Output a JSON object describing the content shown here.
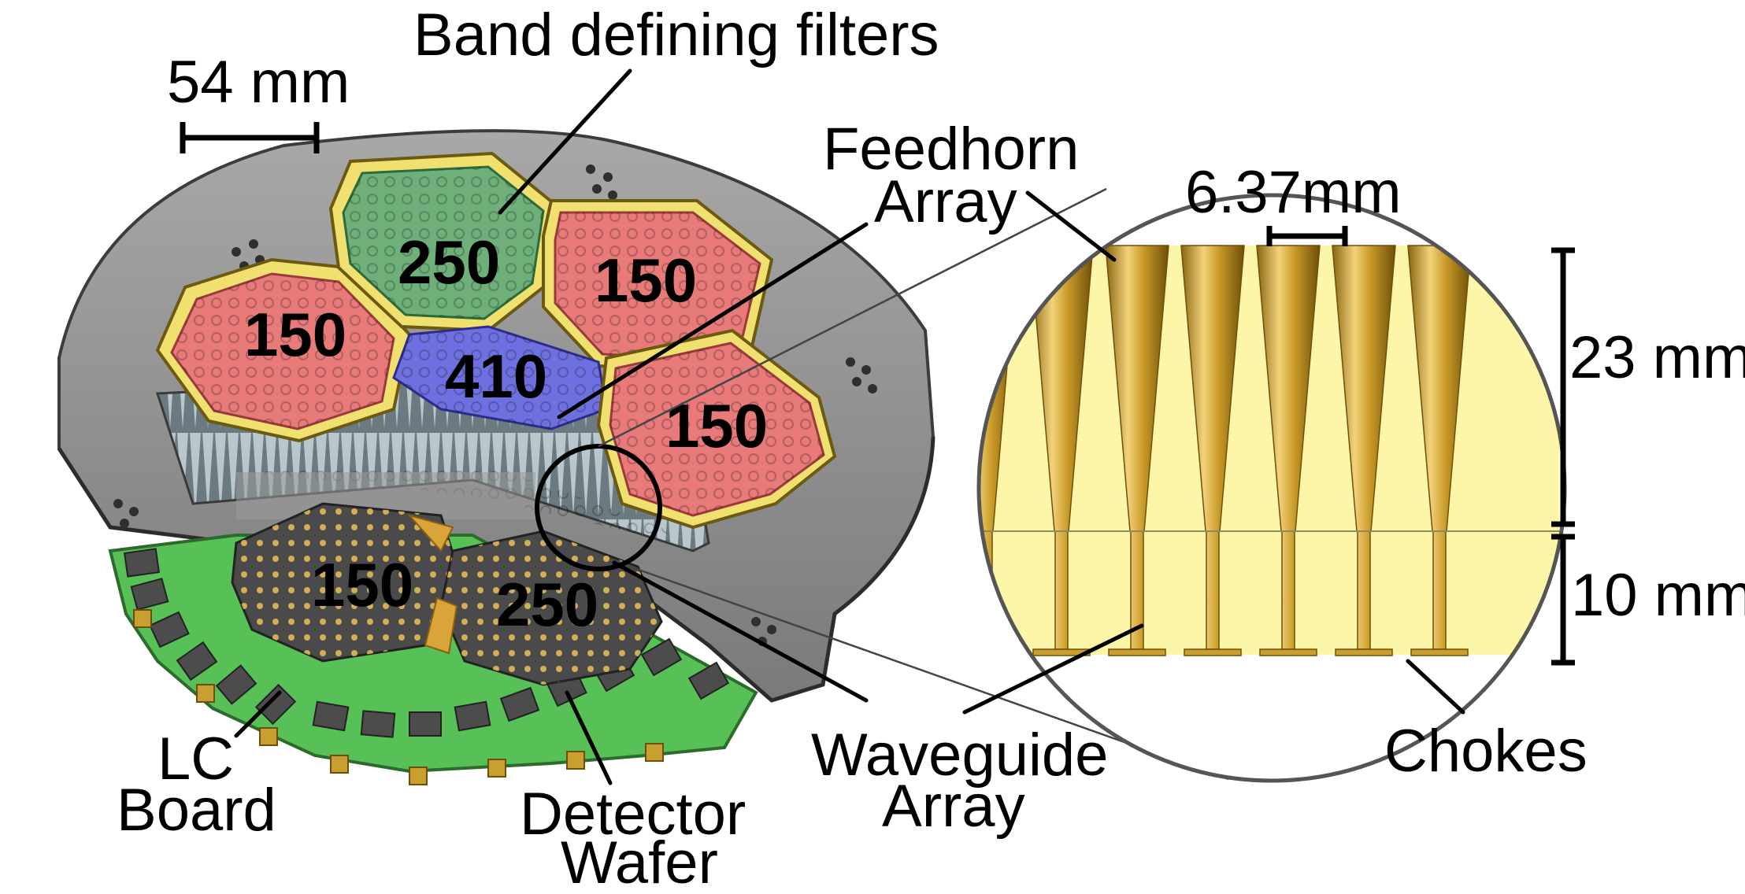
{
  "labels": {
    "scale_bar": "54 mm",
    "band_filters": "Band defining filters",
    "feedhorn_line1": "Feedhorn",
    "feedhorn_line2": "Array",
    "pitch": "6.37mm",
    "horn_length": "23 mm",
    "waveguide_length": "10 mm",
    "lc_line1": "LC",
    "lc_line2": "Board",
    "detector_line1": "Detector",
    "detector_line2": "Wafer",
    "waveguide_line1": "Waveguide",
    "waveguide_line2": "Array",
    "chokes": "Chokes"
  },
  "filter_bands": [
    {
      "label": "150",
      "color": "#e87a7a"
    },
    {
      "label": "250",
      "color": "#6fb07a"
    },
    {
      "label": "150",
      "color": "#e87a7a"
    },
    {
      "label": "410",
      "color": "#6f70e0"
    },
    {
      "label": "150",
      "color": "#e87a7a"
    }
  ],
  "wafer_bands": [
    {
      "label": "150"
    },
    {
      "label": "250"
    }
  ],
  "colors": {
    "frame_gold": "#f2e27a",
    "housing_gray": "#8c8c8c",
    "lc_board_green": "#57c057",
    "wafer_dark": "#4a4a4a",
    "horn_gold": "#c9a030",
    "inset_background": "#fdf5a8"
  }
}
